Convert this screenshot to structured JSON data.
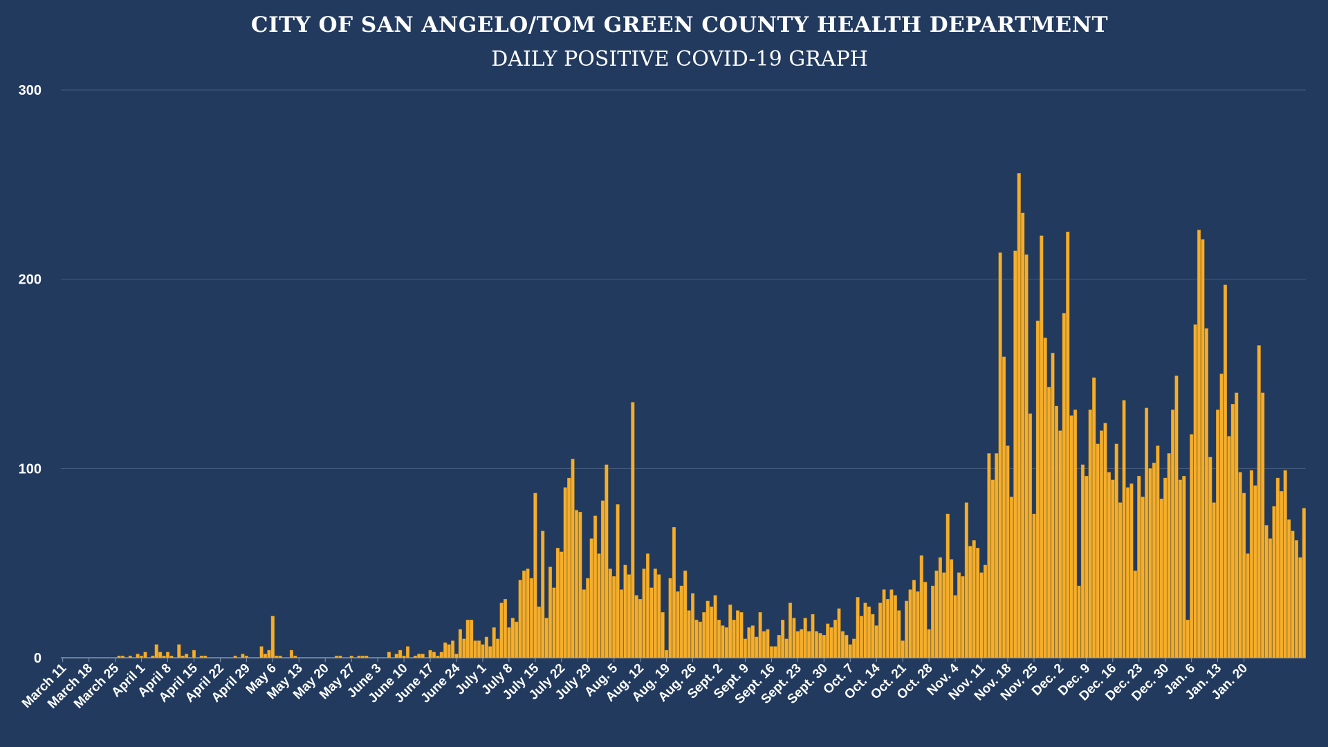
{
  "chart_data": {
    "type": "bar",
    "title": "CITY OF SAN ANGELO/TOM GREEN COUNTY HEALTH DEPARTMENT",
    "subtitle": "DAILY POSITIVE COVID-19 GRAPH",
    "xlabel": "",
    "ylabel": "",
    "ylim": [
      0,
      300
    ],
    "yticks": [
      0,
      100,
      200,
      300
    ],
    "grid": true,
    "legend": "none",
    "bar_color": "#f5ae2c",
    "bar_edge_color": "#b8861d",
    "grid_color": "#4a5f80",
    "text_color": "#ffffff",
    "x_tick_labels": [
      "March 11",
      "March 18",
      "March 25",
      "April 1",
      "April 8",
      "April 15",
      "April 22",
      "April 29",
      "May 6",
      "May 13",
      "May 20",
      "May 27",
      "June 3",
      "June 10",
      "June 17",
      "June 24",
      "July 1",
      "July 8",
      "July 15",
      "July 22",
      "July 29",
      "Aug. 5",
      "Aug. 12",
      "Aug. 19",
      "Aug. 26",
      "Sept. 2",
      "Sept. 9",
      "Sept. 16",
      "Sept. 23",
      "Sept. 30",
      "Oct. 7",
      "Oct. 14",
      "Oct. 21",
      "Oct. 28",
      "Nov. 4",
      "Nov. 11",
      "Nov. 18",
      "Nov. 25",
      "Dec. 2",
      "Dec. 9",
      "Dec. 16",
      "Dec. 23",
      "Dec. 30",
      "Jan. 6",
      "Jan. 13",
      "Jan. 20"
    ],
    "values": [
      0,
      0,
      0,
      0,
      0,
      0,
      0,
      0,
      0,
      0,
      0,
      0,
      0,
      0,
      0,
      1,
      1,
      0,
      1,
      0,
      2,
      1,
      3,
      0,
      1,
      7,
      3,
      1,
      3,
      1,
      0,
      7,
      1,
      2,
      0,
      4,
      0,
      1,
      1,
      0,
      0,
      0,
      0,
      0,
      0,
      0,
      1,
      0,
      2,
      1,
      0,
      0,
      0,
      6,
      2,
      4,
      22,
      1,
      1,
      0,
      0,
      4,
      1,
      0,
      0,
      0,
      0,
      0,
      0,
      0,
      0,
      0,
      0,
      1,
      1,
      0,
      0,
      1,
      0,
      1,
      1,
      1,
      0,
      0,
      0,
      0,
      0,
      3,
      0,
      2,
      4,
      1,
      6,
      0,
      1,
      2,
      2,
      0,
      4,
      3,
      1,
      3,
      8,
      7,
      9,
      2,
      15,
      10,
      20,
      20,
      9,
      9,
      7,
      11,
      6,
      16,
      10,
      29,
      31,
      16,
      21,
      19,
      41,
      46,
      47,
      42,
      87,
      27,
      67,
      21,
      48,
      37,
      58,
      56,
      90,
      95,
      105,
      78,
      77,
      36,
      42,
      63,
      75,
      55,
      83,
      102,
      47,
      43,
      81,
      36,
      49,
      44,
      135,
      33,
      31,
      47,
      55,
      37,
      47,
      44,
      24,
      4,
      42,
      69,
      35,
      38,
      46,
      25,
      34,
      20,
      19,
      24,
      30,
      27,
      33,
      20,
      17,
      16,
      28,
      20,
      25,
      24,
      10,
      16,
      17,
      11,
      24,
      14,
      15,
      6,
      6,
      12,
      20,
      10,
      29,
      21,
      14,
      15,
      21,
      14,
      23,
      14,
      13,
      12,
      18,
      16,
      20,
      26,
      14,
      12,
      7,
      10,
      32,
      22,
      29,
      27,
      23,
      17,
      29,
      36,
      31,
      36,
      33,
      25,
      9,
      30,
      36,
      41,
      35,
      54,
      40,
      15,
      38,
      46,
      53,
      45,
      76,
      52,
      33,
      45,
      43,
      82,
      59,
      62,
      58,
      45,
      49,
      108,
      94,
      108,
      214,
      159,
      112,
      85,
      215,
      256,
      235,
      213,
      129,
      76,
      178,
      223,
      169,
      143,
      161,
      133,
      120,
      182,
      225,
      128,
      131,
      38,
      102,
      96,
      131,
      148,
      113,
      120,
      124,
      98,
      94,
      113,
      82,
      136,
      90,
      92,
      46,
      96,
      85,
      132,
      100,
      103,
      112,
      84,
      95,
      108,
      131,
      149,
      94,
      96,
      20,
      118,
      176,
      226,
      221,
      174,
      106,
      82,
      131,
      150,
      197,
      117,
      134,
      140,
      98,
      87,
      55,
      99,
      91,
      165,
      140,
      70,
      63,
      80,
      95,
      88,
      99,
      73,
      67,
      62,
      53,
      79
    ]
  }
}
